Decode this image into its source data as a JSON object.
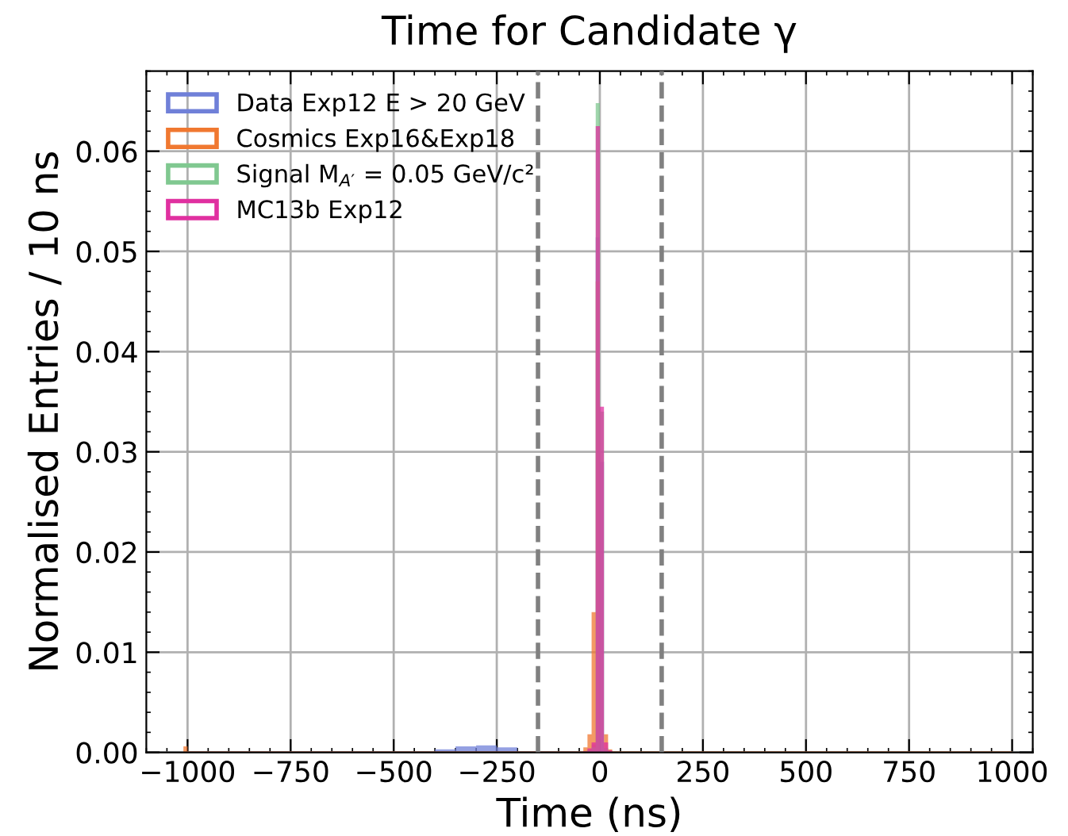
{
  "chart_data": {
    "type": "histogram",
    "title": "Time for Candidate γ",
    "xlabel": "Time (ns)",
    "ylabel": "Normalised Entries / 10 ns",
    "bins": [
      -1010,
      -1000,
      -400,
      -350,
      -300,
      -250,
      -200,
      -40,
      -30,
      -20,
      -10,
      0,
      10,
      20,
      30,
      1000
    ],
    "series": [
      {
        "name": "Data Exp12 E > 20 GeV",
        "color": "#7080d8",
        "values": [
          0,
          0.0001,
          0.0003,
          0.0006,
          0.0007,
          0.0005,
          0.0001,
          0.0001,
          0.0003,
          0.0008,
          0.0514,
          0.029,
          0.0004,
          0.0001,
          0
        ]
      },
      {
        "name": "Cosmics Exp16&Exp18",
        "color": "#f07830",
        "values": [
          0.0006,
          0.0001,
          0.0001,
          0.0001,
          0.0001,
          0.0001,
          0.0001,
          0.0005,
          0.0018,
          0.014,
          0.047,
          0,
          0.0018,
          0.0003,
          0.0001
        ]
      },
      {
        "name": "Signal M$_{A′}$ = 0.05 GeV/c²",
        "color": "#80c890",
        "values": [
          0,
          0,
          0,
          0,
          0,
          0,
          0,
          0,
          0.0002,
          0.0005,
          0.0648,
          0.034,
          0.0004,
          0,
          0
        ]
      },
      {
        "name": "MC13b Exp12",
        "color": "#e030a0",
        "values": [
          0,
          0,
          0,
          0,
          0,
          0,
          0,
          0.0001,
          0.0004,
          0.001,
          0.0625,
          0.0345,
          0.001,
          0.0002,
          0
        ]
      }
    ],
    "xlim": [
      -1100,
      1050
    ],
    "ylim": [
      0,
      0.068
    ],
    "xticks": [
      {
        "value": -1000,
        "label": "−1000"
      },
      {
        "value": -750,
        "label": "−750"
      },
      {
        "value": -500,
        "label": "−500"
      },
      {
        "value": -250,
        "label": "−250"
      },
      0,
      250,
      500,
      750,
      1000
    ],
    "yticks": [
      {
        "value": 0,
        "label": "0.00"
      },
      {
        "value": 0.01,
        "label": "0.01"
      },
      {
        "value": 0.02,
        "label": "0.02"
      },
      {
        "value": 0.03,
        "label": "0.03"
      },
      {
        "value": 0.04,
        "label": "0.04"
      },
      {
        "value": 0.05,
        "label": "0.05"
      },
      {
        "value": 0.06,
        "label": "0.06"
      }
    ],
    "ref_lines": [
      {
        "axis": "x",
        "value": -150,
        "color": "#808080",
        "line_style": "dashed"
      },
      {
        "axis": "x",
        "value": 150,
        "color": "#808080",
        "line_style": "dashed"
      }
    ],
    "grid": true,
    "legend": "top left"
  }
}
